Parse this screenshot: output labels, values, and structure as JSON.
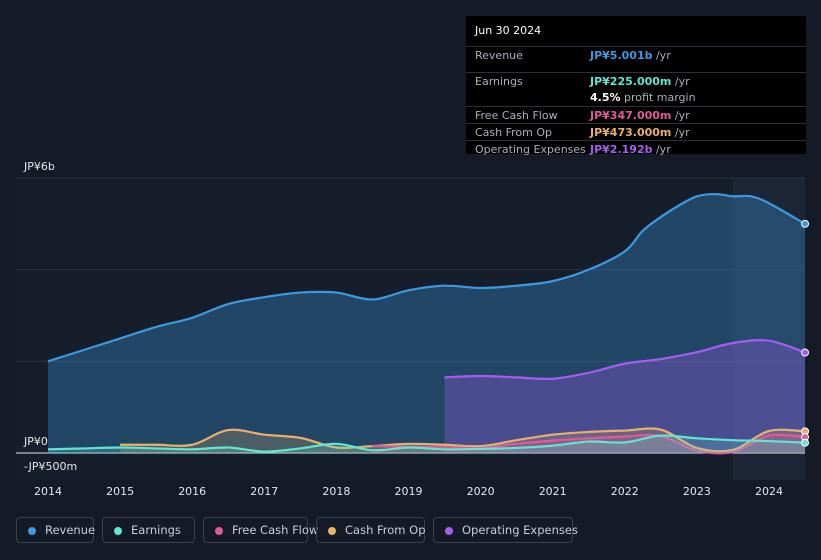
{
  "tooltip": {
    "date": "Jun 30 2024",
    "rows": [
      {
        "label": "Revenue",
        "value": "JP¥5.001b",
        "unit": " /yr",
        "color": "#3b9ae1"
      },
      {
        "label": "Earnings",
        "value": "JP¥225.000m",
        "unit": " /yr",
        "color": "#5de8d0"
      },
      {
        "label": "",
        "value": "4.5%",
        "unit": " profit margin",
        "color": "#ffffff"
      },
      {
        "label": "Free Cash Flow",
        "value": "JP¥347.000m",
        "unit": " /yr",
        "color": "#e05a9a"
      },
      {
        "label": "Cash From Op",
        "value": "JP¥473.000m",
        "unit": " /yr",
        "color": "#e8b06a"
      },
      {
        "label": "Operating Expenses",
        "value": "JP¥2.192b",
        "unit": " /yr",
        "color": "#a55ef0"
      }
    ]
  },
  "legend": [
    {
      "label": "Revenue",
      "color": "#3b9ae1"
    },
    {
      "label": "Earnings",
      "color": "#5de8d0"
    },
    {
      "label": "Free Cash Flow",
      "color": "#e05a9a"
    },
    {
      "label": "Cash From Op",
      "color": "#e8b06a"
    },
    {
      "label": "Operating Expenses",
      "color": "#a55ef0"
    }
  ],
  "chart_data": {
    "type": "area",
    "title": "",
    "xlabel": "",
    "ylabel": "",
    "ylim": [
      -500,
      6000
    ],
    "y_tick_labels": [
      "JP¥6b",
      "JP¥0",
      "-JP¥500m"
    ],
    "y_tick_values": [
      6000,
      0,
      -500
    ],
    "xlim": [
      2014,
      2024.5
    ],
    "x_tick_labels": [
      "2014",
      "2015",
      "2016",
      "2017",
      "2018",
      "2019",
      "2020",
      "2021",
      "2022",
      "2023",
      "2024"
    ],
    "x_tick_values": [
      2014,
      2015,
      2016,
      2017,
      2018,
      2019,
      2020,
      2021,
      2022,
      2023,
      2024
    ],
    "forecast_start": 2023.5,
    "units": "JP¥ millions",
    "series": [
      {
        "name": "Revenue",
        "color": "#3b9ae1",
        "fill": true,
        "x": [
          2014,
          2014.5,
          2015,
          2015.5,
          2016,
          2016.5,
          2017,
          2017.5,
          2018,
          2018.5,
          2019,
          2019.5,
          2020,
          2020.5,
          2021,
          2021.5,
          2022,
          2022.25,
          2022.5,
          2022.75,
          2023,
          2023.25,
          2023.5,
          2023.75,
          2024,
          2024.5
        ],
        "values": [
          2000,
          2250,
          2500,
          2750,
          2950,
          3250,
          3400,
          3500,
          3500,
          3350,
          3550,
          3650,
          3600,
          3650,
          3750,
          4000,
          4400,
          4850,
          5150,
          5400,
          5600,
          5650,
          5600,
          5600,
          5450,
          5000
        ]
      },
      {
        "name": "Earnings",
        "color": "#5de8d0",
        "fill": true,
        "x": [
          2014,
          2014.5,
          2015,
          2015.5,
          2016,
          2016.5,
          2017,
          2017.5,
          2018,
          2018.5,
          2019,
          2019.5,
          2020,
          2020.5,
          2021,
          2021.5,
          2022,
          2022.5,
          2023,
          2023.5,
          2024,
          2024.5
        ],
        "values": [
          80,
          100,
          120,
          100,
          80,
          120,
          30,
          100,
          200,
          60,
          120,
          80,
          90,
          110,
          160,
          250,
          230,
          380,
          320,
          280,
          260,
          225
        ]
      },
      {
        "name": "Free Cash Flow",
        "color": "#e05a9a",
        "fill": true,
        "x": [
          2018.5,
          2019,
          2019.5,
          2020,
          2020.5,
          2021,
          2021.5,
          2022,
          2022.5,
          2023,
          2023.5,
          2024,
          2024.5
        ],
        "values": [
          150,
          140,
          130,
          110,
          200,
          270,
          320,
          360,
          370,
          50,
          20,
          380,
          347
        ]
      },
      {
        "name": "Cash From Op",
        "color": "#e8b06a",
        "fill": true,
        "x": [
          2015,
          2015.5,
          2016,
          2016.5,
          2017,
          2017.5,
          2018,
          2018.5,
          2019,
          2019.5,
          2020,
          2020.5,
          2021,
          2021.5,
          2022,
          2022.5,
          2023,
          2023.5,
          2024,
          2024.5
        ],
        "values": [
          180,
          180,
          180,
          500,
          400,
          330,
          120,
          150,
          200,
          180,
          150,
          280,
          400,
          460,
          490,
          510,
          110,
          70,
          480,
          473
        ]
      },
      {
        "name": "Operating Expenses",
        "color": "#a55ef0",
        "fill": true,
        "x": [
          2019.5,
          2020,
          2020.5,
          2021,
          2021.5,
          2022,
          2022.5,
          2023,
          2023.5,
          2024,
          2024.5
        ],
        "values": [
          1650,
          1680,
          1650,
          1620,
          1750,
          1950,
          2050,
          2200,
          2400,
          2450,
          2192
        ]
      }
    ]
  }
}
